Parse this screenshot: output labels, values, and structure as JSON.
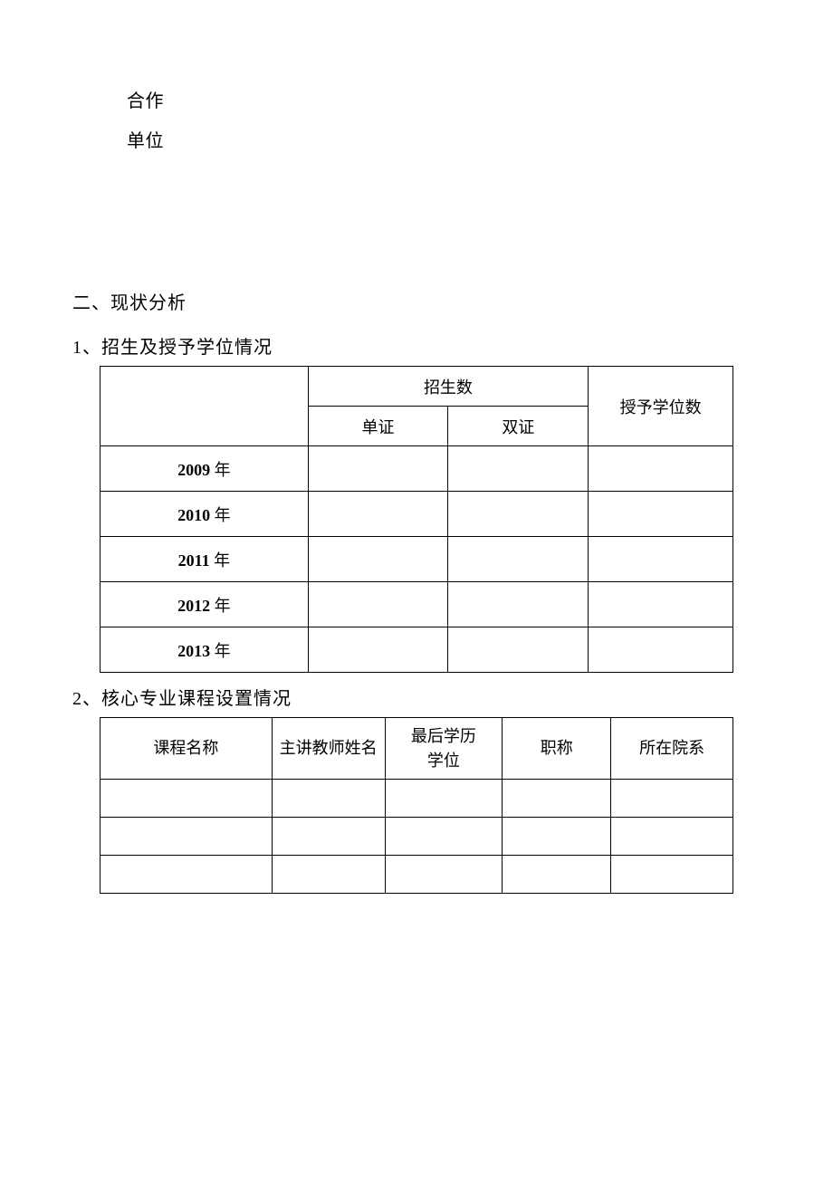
{
  "header": {
    "line1": "合作",
    "line2": "单位"
  },
  "section": {
    "number": "二、",
    "title": "现状分析"
  },
  "subsection1": {
    "number": "1、",
    "title": "招生及授予学位情况"
  },
  "table1": {
    "type": "table",
    "columns": {
      "col1_header": "",
      "col2_group": "招生数",
      "col2_sub1": "单证",
      "col2_sub2": "双证",
      "col4_header": "授予学位数"
    },
    "rows": [
      {
        "year_num": "2009",
        "year_char": "年",
        "single": "",
        "double": "",
        "degrees": ""
      },
      {
        "year_num": "2010",
        "year_char": "年",
        "single": "",
        "double": "",
        "degrees": ""
      },
      {
        "year_num": "2011",
        "year_char": "年",
        "single": "",
        "double": "",
        "degrees": ""
      },
      {
        "year_num": "2012",
        "year_char": "年",
        "single": "",
        "double": "",
        "degrees": ""
      },
      {
        "year_num": "2013",
        "year_char": "年",
        "single": "",
        "double": "",
        "degrees": ""
      }
    ],
    "border_color": "#000000",
    "background_color": "#ffffff",
    "font_size": 18
  },
  "subsection2": {
    "number": "2、",
    "title": "核心专业课程设置情况"
  },
  "table2": {
    "type": "table",
    "headers": {
      "h1": "课程名称",
      "h2": "主讲教师姓名",
      "h3_line1": "最后学历",
      "h3_line2": "学位",
      "h4": "职称",
      "h5": "所在院系"
    },
    "rows": [
      {
        "c1": "",
        "c2": "",
        "c3": "",
        "c4": "",
        "c5": ""
      },
      {
        "c1": "",
        "c2": "",
        "c3": "",
        "c4": "",
        "c5": ""
      },
      {
        "c1": "",
        "c2": "",
        "c3": "",
        "c4": "",
        "c5": ""
      }
    ],
    "border_color": "#000000",
    "background_color": "#ffffff",
    "font_size": 18
  }
}
